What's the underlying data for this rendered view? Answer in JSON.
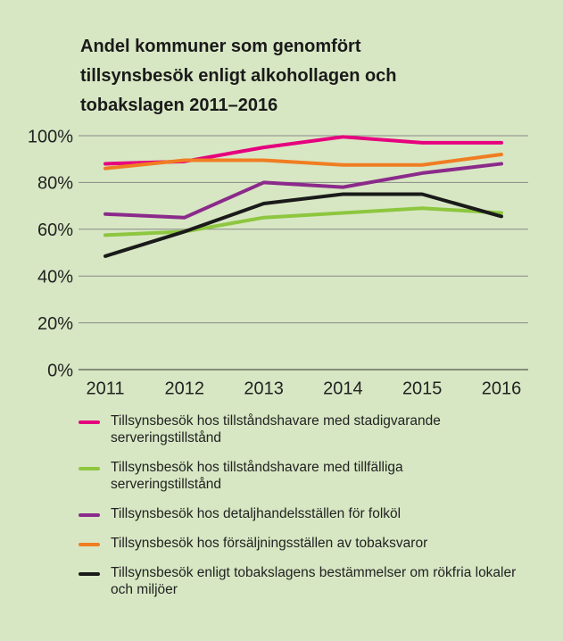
{
  "chart_data": {
    "type": "line",
    "title": "Andel kommuner som genomfört tillsynsbesök enligt alkohollagen och tobakslagen 2011–2016",
    "categories": [
      "2011",
      "2012",
      "2013",
      "2014",
      "2015",
      "2016"
    ],
    "series": [
      {
        "name": "Tillsynsbesök hos tillståndshavare med stadigvarande serveringstillstånd",
        "color": "#e6007e",
        "values": [
          88,
          89,
          95,
          99.5,
          97,
          97
        ]
      },
      {
        "name": "Tillsynsbesök hos tillståndshavare med tillfälliga serveringstillstånd",
        "color": "#8dc63f",
        "values": [
          57.5,
          59,
          65,
          67,
          69,
          67
        ]
      },
      {
        "name": "Tillsynsbesök hos detaljhandelsställen för folköl",
        "color": "#8b2a8b",
        "values": [
          66.5,
          65,
          80,
          78,
          84,
          88
        ]
      },
      {
        "name": "Tillsynsbesök hos försäljningsställen av tobaksvaror",
        "color": "#f07d22",
        "values": [
          86,
          89.5,
          89.5,
          87.5,
          87.5,
          92
        ]
      },
      {
        "name": "Tillsynsbesök enligt tobakslagens bestämmelser om rökfria lokaler och miljöer",
        "color": "#1a1a1a",
        "values": [
          48.5,
          59,
          71,
          75,
          75,
          65.5
        ]
      }
    ],
    "ylim": [
      0,
      100
    ],
    "yticks": [
      {
        "value": 0,
        "label": "0%"
      },
      {
        "value": 20,
        "label": "20%"
      },
      {
        "value": 40,
        "label": "40%"
      },
      {
        "value": 60,
        "label": "60%"
      },
      {
        "value": 80,
        "label": "80%"
      },
      {
        "value": 100,
        "label": "100%"
      }
    ],
    "grid": true
  }
}
